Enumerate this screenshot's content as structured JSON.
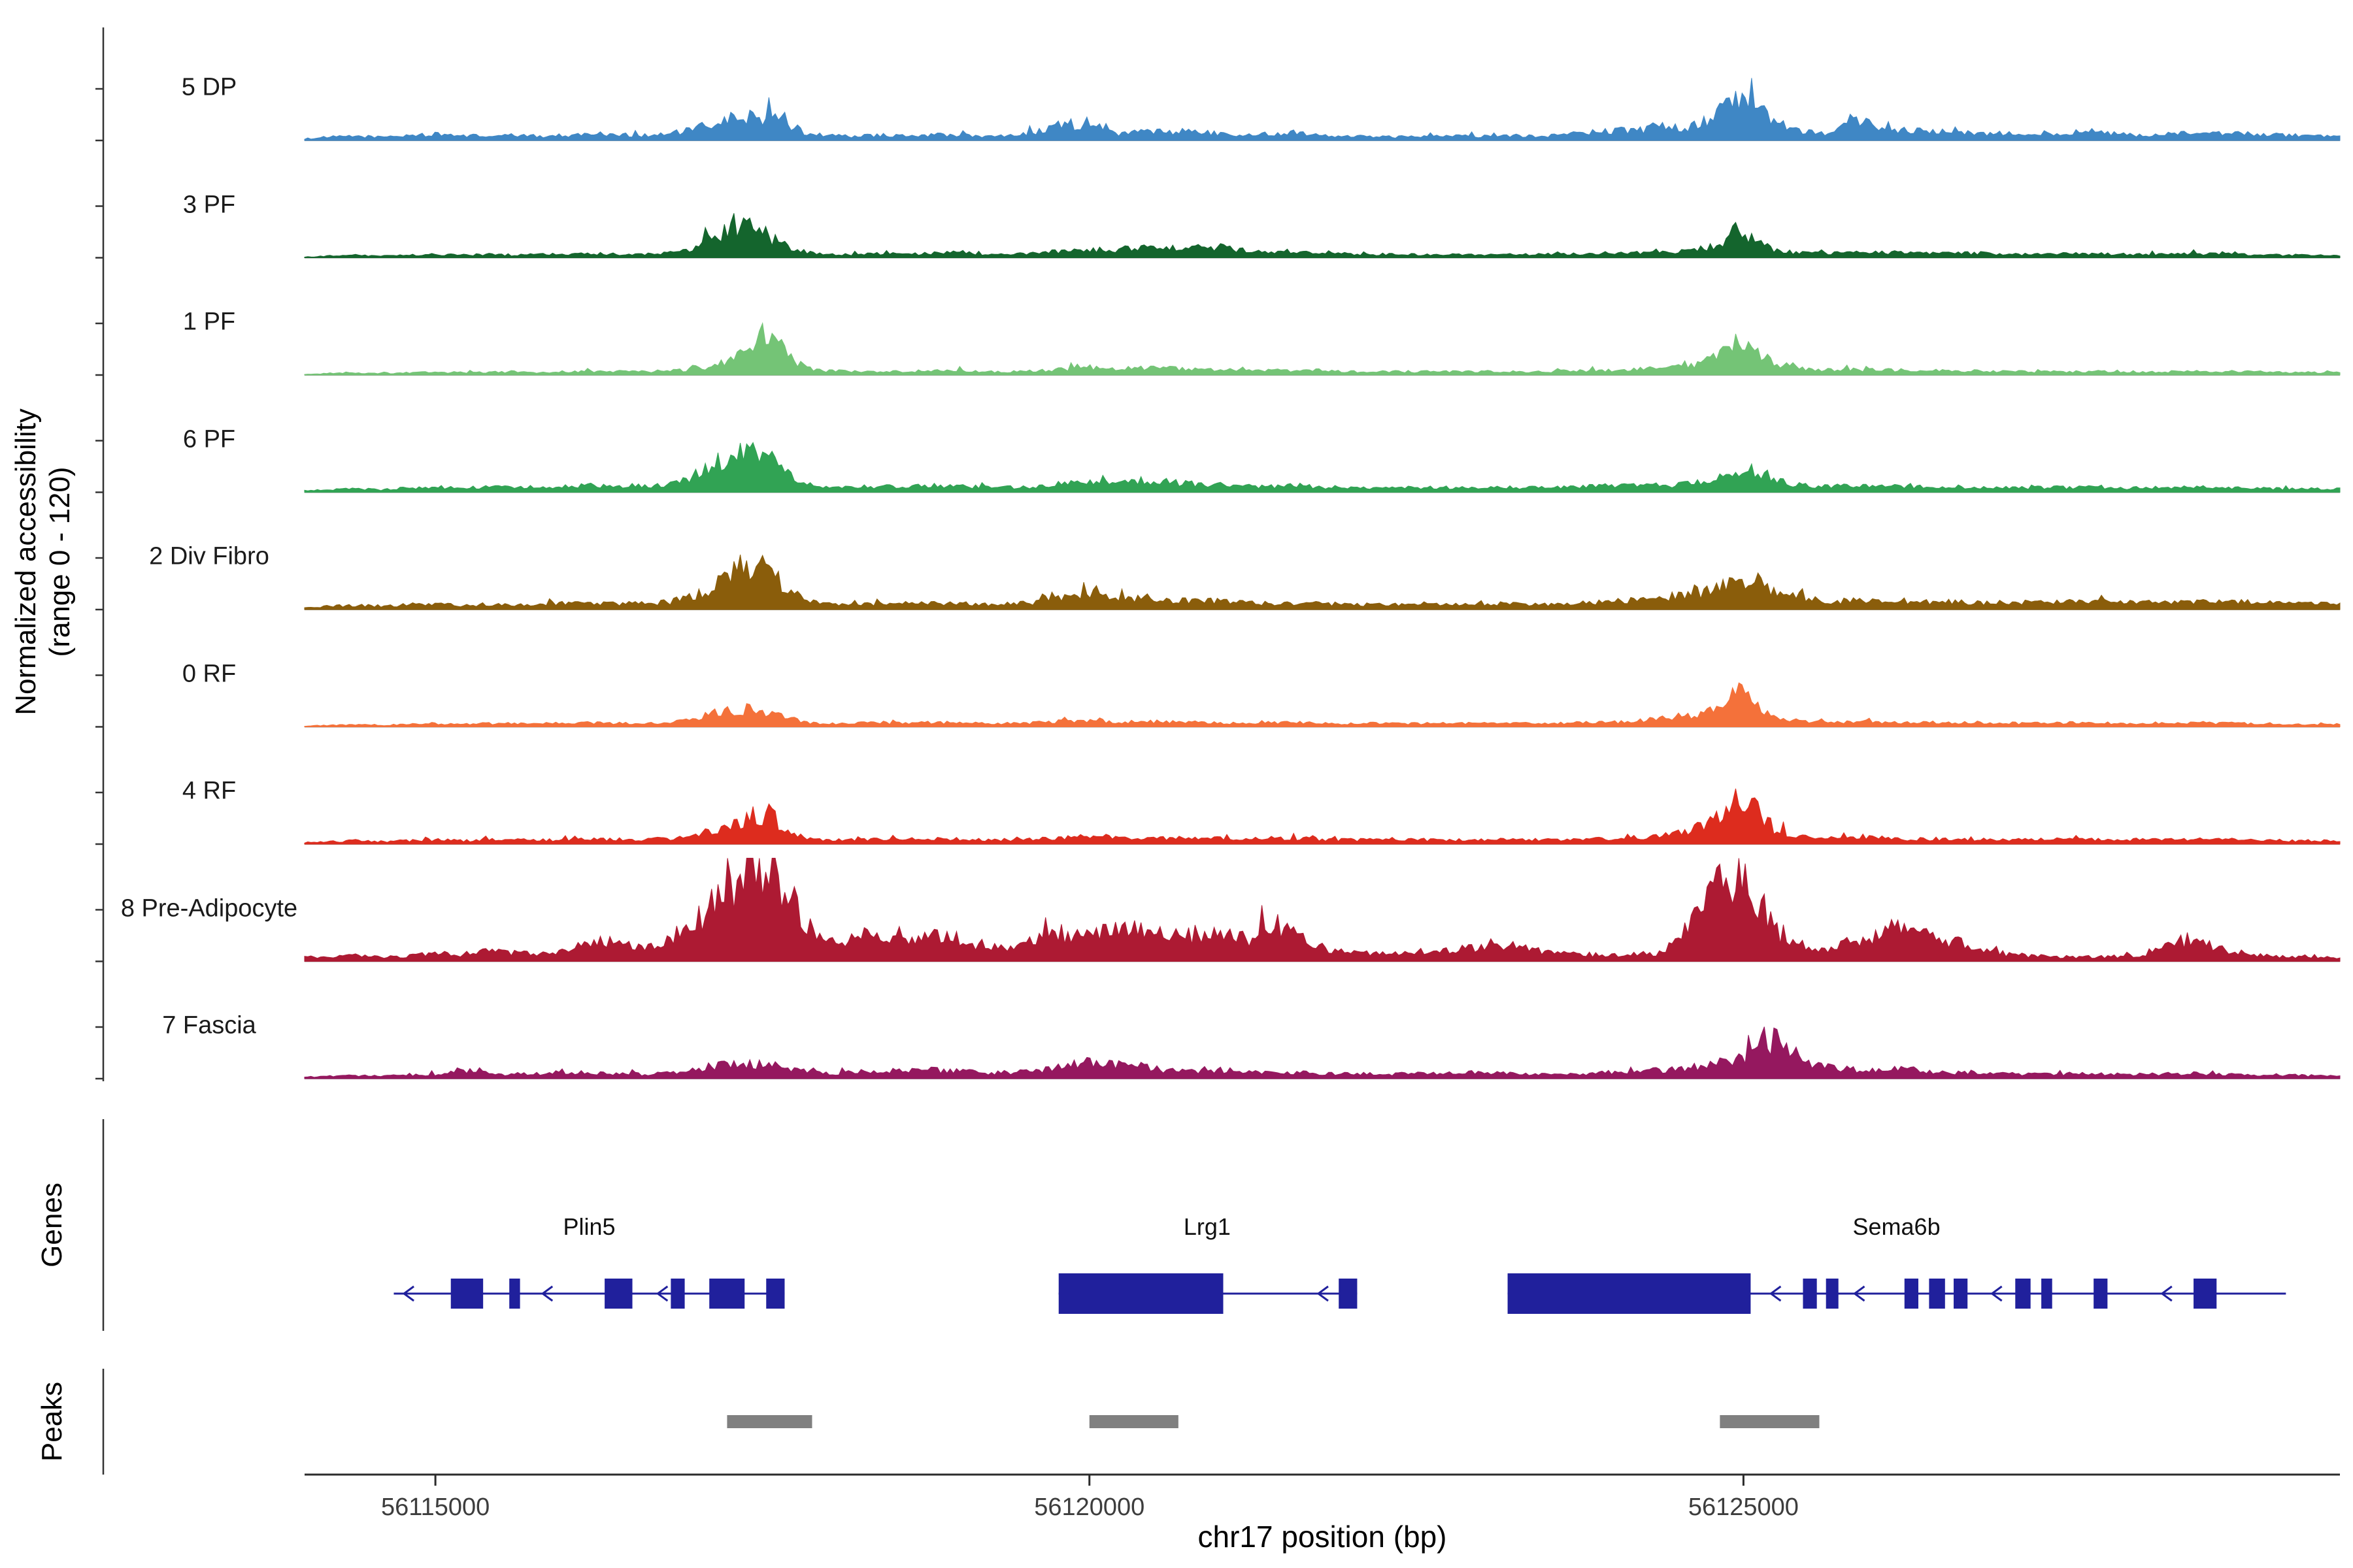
{
  "figure": {
    "y_axis_label_line1": "Normalized accessibility",
    "y_axis_label_line2": "(range 0 - 120)",
    "genes_label": "Genes",
    "peaks_label": "Peaks",
    "x_axis_label": "chr17 position (bp)"
  },
  "chart_data": {
    "type": "area",
    "title": "",
    "xlabel": "chr17 position (bp)",
    "ylabel": "Normalized accessibility (range 0 - 120)",
    "xlim": [
      56114000,
      56129560
    ],
    "ylim_per_track": [
      0,
      120
    ],
    "grid": false,
    "x_ticks": [
      {
        "value": 56115000,
        "label": "56115000"
      },
      {
        "value": 56120000,
        "label": "56120000"
      },
      {
        "value": 56125000,
        "label": "56125000"
      }
    ],
    "positions": [
      56114000,
      56114200,
      56114400,
      56114600,
      56114800,
      56115000,
      56115200,
      56115400,
      56115600,
      56115800,
      56116000,
      56116200,
      56116400,
      56116600,
      56116800,
      56116950,
      56117100,
      56117250,
      56117400,
      56117550,
      56117700,
      56117850,
      56118000,
      56118200,
      56118400,
      56118600,
      56118800,
      56119000,
      56119200,
      56119400,
      56119600,
      56119800,
      56120000,
      56120200,
      56120400,
      56120600,
      56120800,
      56121000,
      56121200,
      56121400,
      56121600,
      56121800,
      56122000,
      56122300,
      56122600,
      56122900,
      56123200,
      56123500,
      56123800,
      56124100,
      56124400,
      56124600,
      56124800,
      56124950,
      56125100,
      56125250,
      56125400,
      56125600,
      56125900,
      56126200,
      56126500,
      56126800,
      56127200,
      56127600,
      56128000,
      56128400,
      56128800,
      56129200,
      56129560
    ],
    "tracks": [
      {
        "name": "5 DP",
        "color": "#3f87c5",
        "values": [
          2,
          4,
          5,
          4,
          6,
          7,
          6,
          5,
          6,
          5,
          6,
          8,
          7,
          6,
          8,
          12,
          18,
          24,
          28,
          26,
          18,
          8,
          6,
          5,
          6,
          5,
          7,
          6,
          5,
          6,
          10,
          20,
          16,
          8,
          10,
          10,
          12,
          8,
          6,
          8,
          10,
          6,
          5,
          4,
          6,
          5,
          6,
          5,
          10,
          12,
          14,
          16,
          30,
          48,
          36,
          20,
          12,
          8,
          22,
          12,
          10,
          8,
          8,
          10,
          6,
          8,
          8,
          6,
          4
        ]
      },
      {
        "name": "3 PF",
        "color": "#14652d",
        "values": [
          1,
          2,
          3,
          2,
          3,
          4,
          3,
          4,
          3,
          4,
          4,
          5,
          4,
          4,
          6,
          10,
          20,
          32,
          35,
          25,
          12,
          6,
          4,
          4,
          5,
          4,
          5,
          6,
          4,
          4,
          5,
          8,
          10,
          9,
          12,
          10,
          14,
          12,
          8,
          6,
          6,
          5,
          4,
          4,
          4,
          4,
          4,
          4,
          5,
          6,
          6,
          8,
          14,
          32,
          18,
          8,
          6,
          5,
          6,
          6,
          6,
          5,
          4,
          5,
          4,
          5,
          4,
          3,
          3
        ]
      },
      {
        "name": "1 PF",
        "color": "#74c476",
        "values": [
          1,
          2,
          2,
          2,
          3,
          3,
          3,
          3,
          4,
          3,
          4,
          4,
          4,
          4,
          5,
          6,
          10,
          15,
          30,
          55,
          20,
          8,
          5,
          4,
          4,
          4,
          5,
          5,
          4,
          4,
          5,
          7,
          9,
          8,
          9,
          8,
          7,
          6,
          5,
          5,
          6,
          5,
          4,
          4,
          4,
          4,
          4,
          4,
          5,
          6,
          8,
          10,
          20,
          36,
          24,
          14,
          8,
          6,
          6,
          6,
          5,
          5,
          4,
          4,
          4,
          4,
          4,
          3,
          3
        ]
      },
      {
        "name": "6 PF",
        "color": "#31a354",
        "values": [
          2,
          3,
          4,
          3,
          5,
          6,
          5,
          6,
          7,
          6,
          7,
          8,
          8,
          7,
          10,
          18,
          30,
          40,
          58,
          42,
          20,
          9,
          6,
          6,
          7,
          6,
          8,
          7,
          6,
          6,
          7,
          10,
          13,
          11,
          14,
          12,
          10,
          9,
          7,
          7,
          8,
          6,
          5,
          5,
          6,
          5,
          6,
          5,
          7,
          8,
          8,
          10,
          18,
          28,
          20,
          14,
          9,
          7,
          9,
          7,
          7,
          6,
          5,
          6,
          5,
          6,
          5,
          4,
          4
        ]
      },
      {
        "name": "2 Div Fibro",
        "color": "#8a5d0b",
        "values": [
          2,
          4,
          5,
          4,
          6,
          6,
          5,
          6,
          6,
          7,
          7,
          8,
          7,
          7,
          9,
          15,
          25,
          38,
          55,
          48,
          22,
          9,
          7,
          6,
          7,
          7,
          8,
          7,
          6,
          7,
          8,
          14,
          18,
          14,
          12,
          10,
          10,
          10,
          8,
          7,
          8,
          7,
          6,
          6,
          7,
          6,
          7,
          6,
          8,
          10,
          15,
          18,
          24,
          30,
          32,
          24,
          16,
          10,
          10,
          9,
          9,
          8,
          8,
          9,
          8,
          10,
          9,
          8,
          6
        ]
      },
      {
        "name": "0 RF",
        "color": "#f4713a",
        "values": [
          1,
          2,
          3,
          2,
          3,
          4,
          3,
          4,
          4,
          4,
          4,
          5,
          4,
          4,
          5,
          8,
          14,
          20,
          20,
          16,
          10,
          5,
          4,
          4,
          5,
          4,
          5,
          5,
          4,
          4,
          5,
          6,
          7,
          6,
          6,
          6,
          5,
          5,
          4,
          5,
          5,
          4,
          4,
          4,
          4,
          4,
          4,
          4,
          5,
          6,
          10,
          14,
          18,
          46,
          28,
          12,
          7,
          5,
          6,
          5,
          5,
          5,
          4,
          5,
          4,
          5,
          4,
          3,
          3
        ]
      },
      {
        "name": "4 RF",
        "color": "#dd2c1e",
        "values": [
          2,
          3,
          4,
          3,
          4,
          5,
          4,
          5,
          5,
          5,
          5,
          6,
          5,
          5,
          7,
          10,
          16,
          20,
          32,
          35,
          15,
          7,
          5,
          5,
          6,
          5,
          6,
          6,
          5,
          5,
          6,
          8,
          9,
          8,
          8,
          7,
          7,
          7,
          6,
          6,
          7,
          5,
          5,
          5,
          5,
          5,
          5,
          5,
          6,
          7,
          10,
          15,
          30,
          56,
          40,
          16,
          9,
          6,
          8,
          6,
          6,
          5,
          5,
          6,
          5,
          6,
          5,
          4,
          4
        ]
      },
      {
        "name": "8 Pre-Adipocyte",
        "color": "#ad1a33",
        "values": [
          5,
          4,
          8,
          5,
          6,
          10,
          8,
          12,
          10,
          8,
          12,
          26,
          20,
          14,
          30,
          45,
          60,
          85,
          110,
          115,
          70,
          38,
          22,
          26,
          30,
          24,
          28,
          26,
          18,
          14,
          24,
          32,
          38,
          34,
          36,
          30,
          32,
          34,
          26,
          38,
          30,
          16,
          10,
          8,
          12,
          16,
          18,
          10,
          8,
          8,
          10,
          42,
          80,
          112,
          75,
          35,
          20,
          12,
          26,
          36,
          30,
          12,
          6,
          5,
          6,
          25,
          8,
          5,
          4
        ]
      },
      {
        "name": "7 Fascia",
        "color": "#95185f",
        "values": [
          2,
          3,
          4,
          3,
          4,
          5,
          10,
          6,
          5,
          6,
          8,
          6,
          6,
          5,
          8,
          10,
          14,
          18,
          16,
          20,
          12,
          8,
          6,
          7,
          10,
          9,
          10,
          9,
          7,
          7,
          10,
          14,
          20,
          16,
          14,
          10,
          9,
          10,
          8,
          8,
          7,
          6,
          6,
          5,
          6,
          7,
          6,
          5,
          6,
          8,
          10,
          14,
          18,
          26,
          30,
          46,
          28,
          14,
          10,
          12,
          8,
          6,
          5,
          6,
          5,
          6,
          5,
          4,
          3
        ]
      }
    ],
    "genes": {
      "color": "#20209c",
      "items": [
        {
          "name": "Plin5",
          "start": 56114682,
          "end": 56117670,
          "strand": "-",
          "exons": [
            [
              56115118,
              56115365
            ],
            [
              56115565,
              56115647
            ],
            [
              56116294,
              56116506
            ],
            [
              56116800,
              56116906
            ],
            [
              56117094,
              56117364
            ],
            [
              56117529,
              56117670
            ]
          ],
          "arrows": [
            56114760,
            56115820,
            56116700
          ],
          "label_bp": 56116176
        },
        {
          "name": "Lrg1",
          "start": 56119765,
          "end": 56122047,
          "strand": "-",
          "exons": [
            [
              56119765,
              56121023,
              1
            ],
            [
              56121906,
              56122047
            ]
          ],
          "arrows": [
            56121750
          ],
          "label_bp": 56120900
        },
        {
          "name": "Sema6b",
          "start": 56123197,
          "end": 56129147,
          "strand": "-",
          "exons": [
            [
              56123197,
              56125055,
              1
            ],
            [
              56125455,
              56125561
            ],
            [
              56125631,
              56125726
            ],
            [
              56126231,
              56126337
            ],
            [
              56126419,
              56126541
            ],
            [
              56126607,
              56126713
            ],
            [
              56127078,
              56127195
            ],
            [
              56127277,
              56127360
            ],
            [
              56127677,
              56127783
            ],
            [
              56128441,
              56128617
            ]
          ],
          "arrows": [
            56125210,
            56125850,
            56126900,
            56128200
          ],
          "label_bp": 56126170
        }
      ]
    },
    "peaks": {
      "color": "#808080",
      "regions": [
        [
          56117230,
          56117880
        ],
        [
          56120000,
          56120680
        ],
        [
          56124820,
          56125580
        ]
      ]
    },
    "style": {
      "baseline_color": "#9b9b9b",
      "axis_color": "#2b2b2b",
      "bracket_color": "#333333"
    }
  }
}
